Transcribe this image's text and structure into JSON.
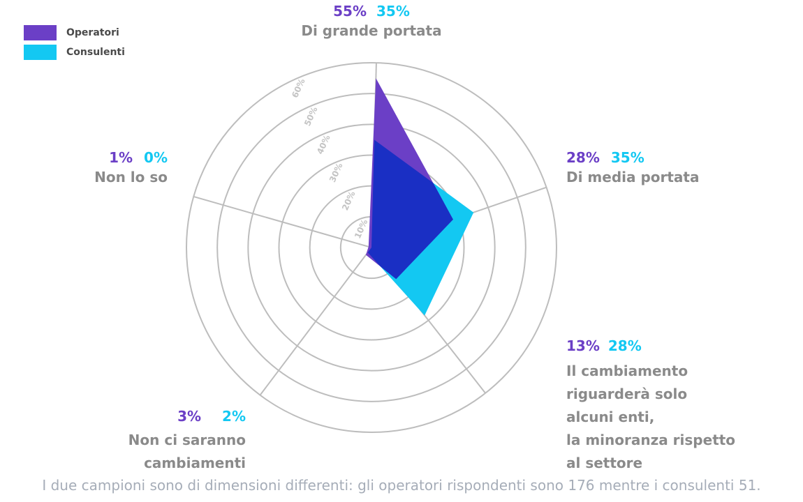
{
  "chart_data": {
    "type": "radar",
    "categories": [
      "Di grande portata",
      "Di media portata",
      "Il cambiamento riguarderà solo alcuni enti, la minoranza rispetto al settore",
      "Non ci saranno cambiamenti",
      "Non lo so"
    ],
    "category_label_lines": [
      [
        "Di grande portata"
      ],
      [
        "Di media portata"
      ],
      [
        "Il cambiamento",
        "riguarderà solo",
        "alcuni enti,",
        "la minoranza rispetto",
        "al settore"
      ],
      [
        "Non ci saranno",
        "cambiamenti"
      ],
      [
        "Non lo so"
      ]
    ],
    "series": [
      {
        "name": "Operatori",
        "values": [
          55,
          28,
          13,
          3,
          1
        ],
        "labels": [
          "55%",
          "28%",
          "13%",
          "3%",
          "1%"
        ],
        "color": "#6b3fc6"
      },
      {
        "name": "Consulenti",
        "values": [
          35,
          35,
          28,
          2,
          0
        ],
        "labels": [
          "35%",
          "35%",
          "28%",
          "2%",
          "0%"
        ],
        "color": "#13c8f2"
      }
    ],
    "overlap_color": "#1a2fc4",
    "r_ticks": [
      "10%",
      "20%",
      "30%",
      "40%",
      "50%",
      "60%"
    ],
    "rlim": [
      0,
      60
    ],
    "grid": true,
    "legend": "top-left"
  },
  "note": "I due campioni sono di dimensioni differenti: gli operatori rispondenti sono 176 mentre i consulenti 51."
}
